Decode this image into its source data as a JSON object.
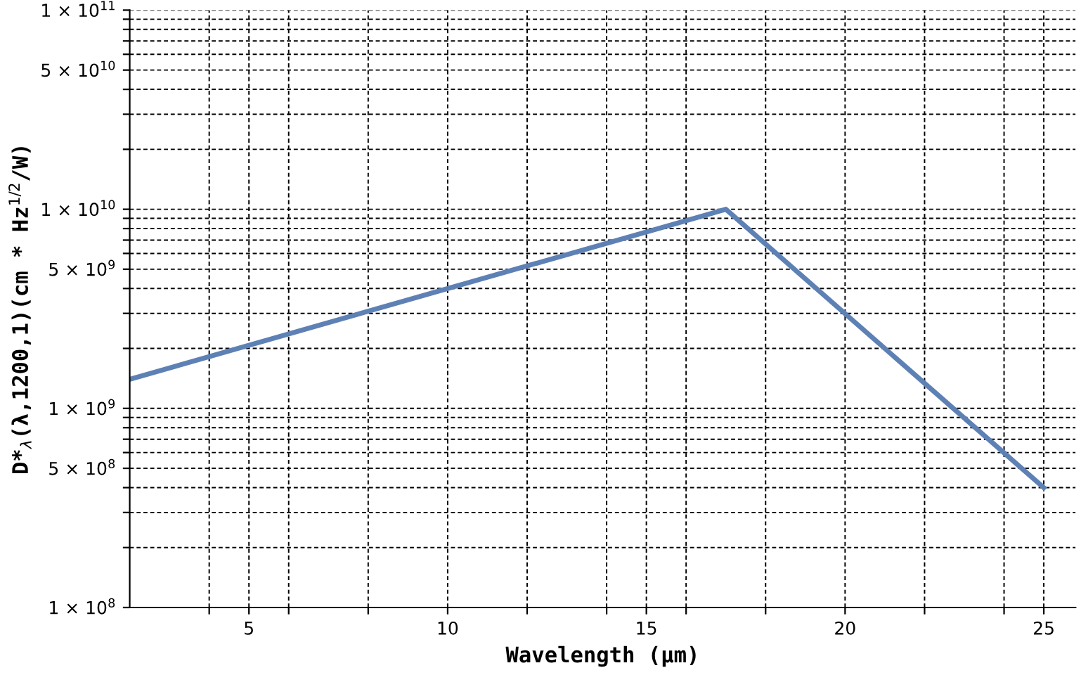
{
  "chart_data": {
    "type": "line",
    "xlabel": "Wavelength (μm)",
    "ylabel": "D*$_{λ}$(λ,1200,1)(cm * Hz$^{1/2}$/W)",
    "series": [
      {
        "color": "#5e81b5",
        "x": [
          2,
          17,
          25
        ],
        "values": [
          1400000000.0,
          10000000000.0,
          400000000.0
        ]
      }
    ],
    "log": "y",
    "xlim": [
      2,
      25.8
    ],
    "ylim": [
      100000000.0,
      100000000000.0
    ],
    "xticks": [
      {
        "value": 4,
        "label": null
      },
      5,
      {
        "value": 6,
        "label": null
      },
      {
        "value": 8,
        "label": null
      },
      10,
      {
        "value": 12,
        "label": null
      },
      {
        "value": 14,
        "label": null
      },
      15,
      {
        "value": 16,
        "label": null
      },
      {
        "value": 18,
        "label": null
      },
      20,
      {
        "value": 22,
        "label": null
      },
      {
        "value": 24,
        "label": null
      },
      25
    ],
    "yticks": [
      {
        "value": 100000000.0,
        "label": "1 × 10$^{8}$"
      },
      {
        "value": 200000000.0,
        "label": null
      },
      {
        "value": 300000000.0,
        "label": null
      },
      {
        "value": 400000000.0,
        "label": null
      },
      {
        "value": 500000000.0,
        "label": "5 × 10$^{8}$"
      },
      {
        "value": 600000000.0,
        "label": null
      },
      {
        "value": 700000000.0,
        "label": null
      },
      {
        "value": 800000000.0,
        "label": null
      },
      {
        "value": 900000000.0,
        "label": null
      },
      {
        "value": 1000000000.0,
        "label": "1 × 10$^{9}$"
      },
      {
        "value": 2000000000.0,
        "label": null
      },
      {
        "value": 3000000000.0,
        "label": null
      },
      {
        "value": 4000000000.0,
        "label": null
      },
      {
        "value": 5000000000.0,
        "label": "5 × 10$^{9}$"
      },
      {
        "value": 6000000000.0,
        "label": null
      },
      {
        "value": 7000000000.0,
        "label": null
      },
      {
        "value": 8000000000.0,
        "label": null
      },
      {
        "value": 9000000000.0,
        "label": null
      },
      {
        "value": 10000000000.0,
        "label": "1 × 10$^{10}$"
      },
      {
        "value": 20000000000.0,
        "label": null
      },
      {
        "value": 30000000000.0,
        "label": null
      },
      {
        "value": 40000000000.0,
        "label": null
      },
      {
        "value": 50000000000.0,
        "label": "5 × 10$^{10}$"
      },
      {
        "value": 60000000000.0,
        "label": null
      },
      {
        "value": 70000000000.0,
        "label": null
      },
      {
        "value": 80000000000.0,
        "label": null
      },
      {
        "value": 90000000000.0,
        "label": null
      },
      {
        "value": 100000000000.0,
        "label": "1 × 10$^{11}$"
      }
    ],
    "grid": true,
    "line_style": "solid"
  }
}
